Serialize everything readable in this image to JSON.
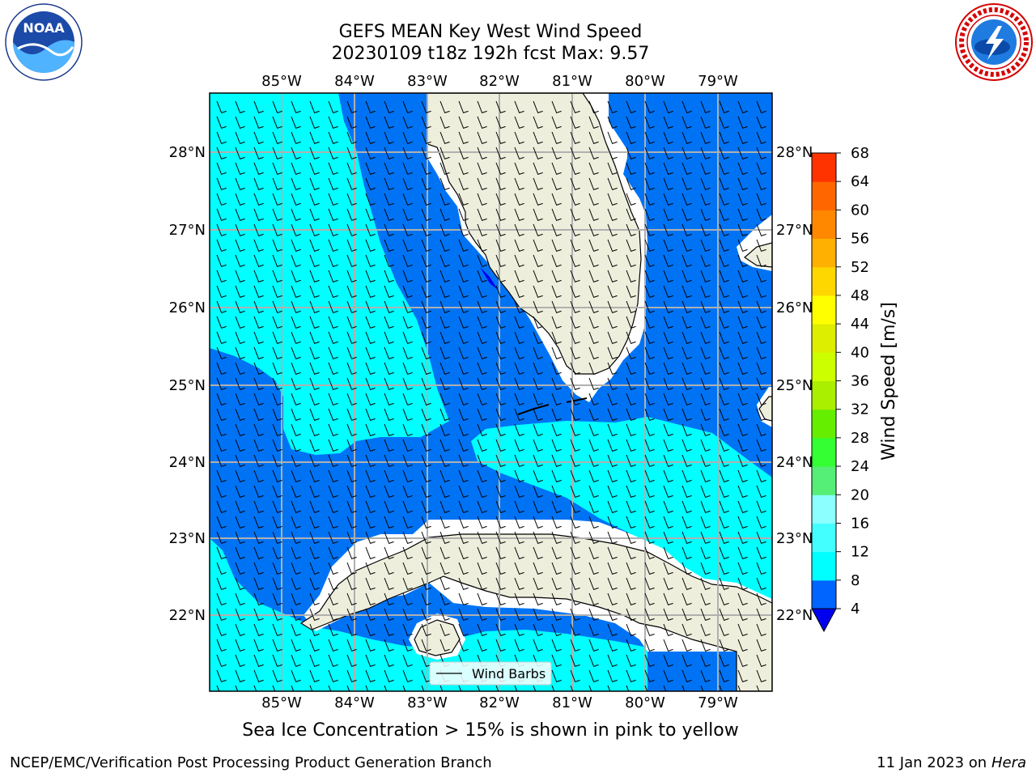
{
  "title_line1": "GEFS MEAN Key West Wind Speed",
  "title_line2": "20230109 t18z 192h fcst   Max: 9.57",
  "logos": {
    "left_text": "NOAA",
    "left_ring_text": "NATIONAL OCEANIC AND ATMOSPHERIC ADMINISTRATION · U.S. DEPARTMENT OF COMMERCE",
    "right_ring_text": "NATIONAL WEATHER SERVICE"
  },
  "map": {
    "lon_labels": [
      "85°W",
      "84°W",
      "83°W",
      "82°W",
      "81°W",
      "80°W",
      "79°W"
    ],
    "lat_labels": [
      "28°N",
      "27°N",
      "26°N",
      "25°N",
      "24°N",
      "23°N",
      "22°N"
    ],
    "legend_label": "Wind Barbs"
  },
  "colorbar": {
    "label": "Wind Speed [m/s]",
    "ticks": [
      "4",
      "8",
      "12",
      "16",
      "20",
      "24",
      "28",
      "32",
      "36",
      "40",
      "44",
      "48",
      "52",
      "56",
      "60",
      "64",
      "68"
    ],
    "colors": [
      "#0065ff",
      "#00ffff",
      "#43ffff",
      "#8cffff",
      "#55ee77",
      "#33ff33",
      "#66ee00",
      "#aaee00",
      "#ccff00",
      "#ddee00",
      "#ffff00",
      "#ffd700",
      "#ffb000",
      "#ff8800",
      "#ff6600",
      "#ff3300"
    ],
    "under_color": "#0000ee"
  },
  "colors": {
    "land": "#eeeedd",
    "ocean_low": "#0073f5",
    "ocean_mid": "#00ffff"
  },
  "caption": "Sea Ice Concentration > 15% is shown in pink to yellow",
  "footer_left": "NCEP/EMC/Verification Post Processing Product Generation Branch",
  "footer_date": "11 Jan 2023 on ",
  "footer_host": "Hera"
}
